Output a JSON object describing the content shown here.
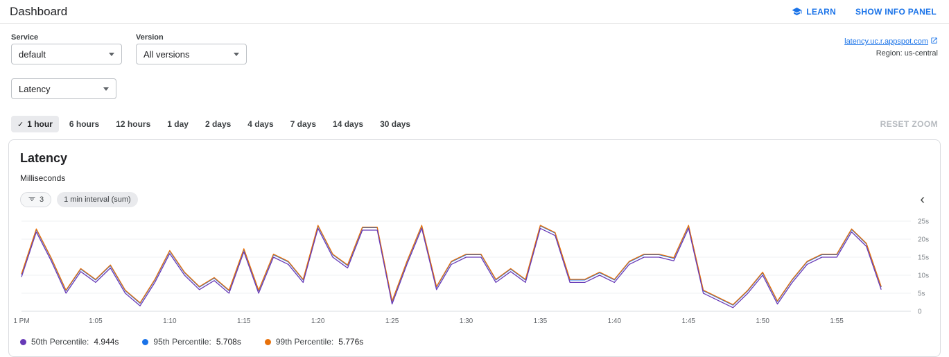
{
  "header": {
    "title": "Dashboard",
    "learn_label": "LEARN",
    "show_info_panel_label": "SHOW INFO PANEL"
  },
  "filters": {
    "service_label": "Service",
    "service_value": "default",
    "version_label": "Version",
    "version_value": "All versions",
    "metric_value": "Latency",
    "app_link_text": "latency.uc.r.appspot.com",
    "region_text": "Region: us-central"
  },
  "time_ranges": {
    "options": [
      "1 hour",
      "6 hours",
      "12 hours",
      "1 day",
      "2 days",
      "4 days",
      "7 days",
      "14 days",
      "30 days"
    ],
    "selected": "1 hour",
    "reset_zoom_label": "RESET ZOOM"
  },
  "chart_card": {
    "title": "Latency",
    "subtitle": "Milliseconds",
    "filter_count": "3",
    "interval_label": "1 min interval (sum)"
  },
  "legend": [
    {
      "label": "50th Percentile:",
      "value": "4.944s",
      "color": "#673ab7"
    },
    {
      "label": "95th Percentile:",
      "value": "5.708s",
      "color": "#1a73e8"
    },
    {
      "label": "99th Percentile:",
      "value": "5.776s",
      "color": "#e8710a"
    }
  ],
  "icons": {
    "check": "✓",
    "chevron_left": "‹"
  },
  "chart_data": {
    "type": "line",
    "title": "Latency",
    "ylabel": "Milliseconds",
    "x_unit": "minutes after 1:00 PM, 1 min interval (sum)",
    "xlim": [
      0,
      60
    ],
    "ylim": [
      0,
      25
    ],
    "grid": true,
    "legend_position": "bottom",
    "x_tick_positions": [
      0,
      5,
      10,
      15,
      20,
      25,
      30,
      35,
      40,
      45,
      50,
      55
    ],
    "x_tick_labels": [
      "1 PM",
      "1:05",
      "1:10",
      "1:15",
      "1:20",
      "1:25",
      "1:30",
      "1:35",
      "1:40",
      "1:45",
      "1:50",
      "1:55"
    ],
    "y_tick_values": [
      0,
      5,
      10,
      15,
      20,
      25
    ],
    "y_tick_labels": [
      "0",
      "5s",
      "10s",
      "15s",
      "20s",
      "25s"
    ],
    "x": [
      0,
      1,
      2,
      3,
      4,
      5,
      6,
      7,
      8,
      9,
      10,
      11,
      12,
      13,
      14,
      15,
      16,
      17,
      18,
      19,
      20,
      21,
      22,
      23,
      24,
      25,
      26,
      27,
      28,
      29,
      30,
      31,
      32,
      33,
      34,
      35,
      36,
      37,
      38,
      39,
      40,
      41,
      42,
      43,
      44,
      45,
      46,
      47,
      48,
      49,
      50,
      51,
      52,
      53,
      54,
      55,
      56,
      57,
      58
    ],
    "series": [
      {
        "name": "50th Percentile",
        "color": "#673ab7",
        "values": [
          9.5,
          22,
          14,
          5,
          11,
          8,
          12,
          5,
          1.5,
          8,
          16,
          10,
          6,
          8.5,
          5,
          16.5,
          5,
          15,
          13,
          8,
          23,
          15,
          12,
          22.5,
          22.5,
          2,
          13,
          23,
          6,
          13,
          15,
          15,
          8,
          11,
          8,
          23,
          21,
          8,
          8,
          10,
          8,
          13,
          15,
          15,
          14,
          23,
          5,
          3,
          1,
          5,
          10,
          2,
          8,
          13,
          15,
          15,
          22,
          18,
          6
        ]
      },
      {
        "name": "95th Percentile",
        "color": "#1a73e8",
        "values": [
          10.2,
          22.7,
          14.7,
          5.7,
          11.7,
          8.7,
          12.7,
          5.7,
          2.2,
          8.7,
          16.7,
          10.7,
          6.7,
          9.2,
          5.7,
          17.2,
          5.7,
          15.7,
          13.7,
          8.7,
          23.7,
          15.7,
          12.7,
          23.2,
          23.2,
          2.7,
          13.7,
          23.7,
          6.7,
          13.7,
          15.7,
          15.7,
          8.7,
          11.7,
          8.7,
          23.7,
          21.7,
          8.7,
          8.7,
          10.7,
          8.7,
          13.7,
          15.7,
          15.7,
          14.7,
          23.7,
          5.7,
          3.7,
          1.7,
          5.7,
          10.7,
          2.7,
          8.7,
          13.7,
          15.7,
          15.7,
          22.7,
          18.7,
          6.7
        ]
      },
      {
        "name": "99th Percentile",
        "color": "#e8710a",
        "values": [
          10.35,
          22.85,
          14.85,
          5.85,
          11.85,
          8.85,
          12.85,
          5.85,
          2.35,
          8.85,
          16.85,
          10.85,
          6.85,
          9.35,
          5.85,
          17.35,
          5.85,
          15.85,
          13.85,
          8.85,
          23.85,
          15.85,
          12.85,
          23.35,
          23.35,
          2.85,
          13.85,
          23.85,
          6.85,
          13.85,
          15.85,
          15.85,
          8.85,
          11.85,
          8.85,
          23.85,
          21.85,
          8.85,
          8.85,
          10.85,
          8.85,
          13.85,
          15.85,
          15.85,
          14.85,
          23.85,
          5.85,
          3.85,
          1.85,
          5.85,
          10.85,
          2.85,
          8.85,
          13.85,
          15.85,
          15.85,
          22.85,
          18.85,
          6.85
        ]
      }
    ]
  }
}
